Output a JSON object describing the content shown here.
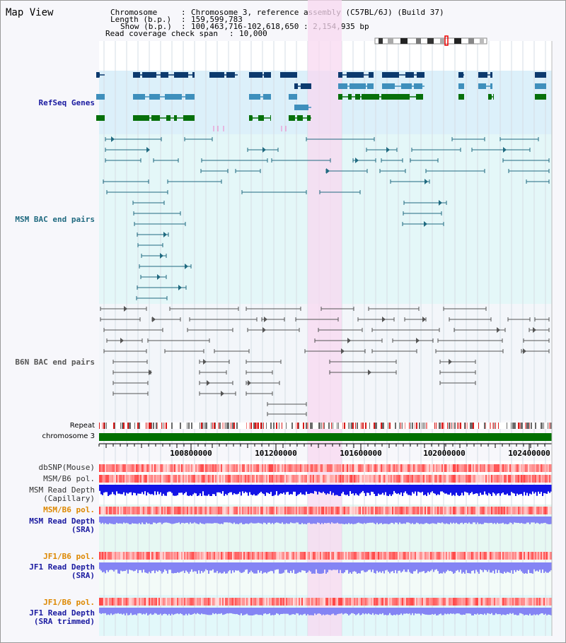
{
  "view_title": "Map View",
  "info": {
    "chromosome_key": "Chromosome",
    "chromosome_value": "Chromosome 3, reference assembly (C57BL/6J) (Build 37)",
    "length_key": "Length (b.p.)",
    "length_value": "159,599,783",
    "show_key": "Show (b.p.)",
    "show_value": "100,463,716-102,618,650 : 2,154,935 bp",
    "coverage_key": "Read coverage check span",
    "coverage_value": "10,000"
  },
  "tracks": {
    "refseq": "RefSeq Genes",
    "msm_bac": "MSM BAC end pairs",
    "b6n_bac": "B6N BAC end pairs",
    "repeat": "Repeat",
    "chromosome": "chromosome 3",
    "dbsnp": "dbSNP(Mouse)",
    "msm_pol1": "MSM/B6 pol.",
    "msm_depth_cap": "MSM Read Depth\n(Capillary)",
    "msm_pol2": "MSM/B6 pol.",
    "msm_depth_sra": "MSM Read Depth\n(SRA)",
    "jf1_pol1": "JF1/B6 pol.",
    "jf1_depth_sra": "JF1 Read Depth\n(SRA)",
    "jf1_pol2": "JF1/B6 pol.",
    "jf1_depth_trim": "JF1 Read Depth\n(SRA trimmed)"
  },
  "ruler": {
    "ticks": [
      "100800000",
      "101200000",
      "101600000",
      "102000000",
      "102400000"
    ]
  },
  "colors": {
    "refseq_bg": "#dcf0fa",
    "gene_dark": "#0c3a6e",
    "gene_mid": "#3e8fbc",
    "gene_green": "#06700a",
    "msm_bac": "#206a80",
    "b6n_bac": "#555555",
    "highlight": "#f8d8f0",
    "chromosome_bar": "#007000",
    "depth_blue": "#1414e6",
    "depth_light": "#8484f4",
    "pol_red": "#e83030",
    "label_blue": "#1a1aa0",
    "label_orange": "#dd8800"
  }
}
